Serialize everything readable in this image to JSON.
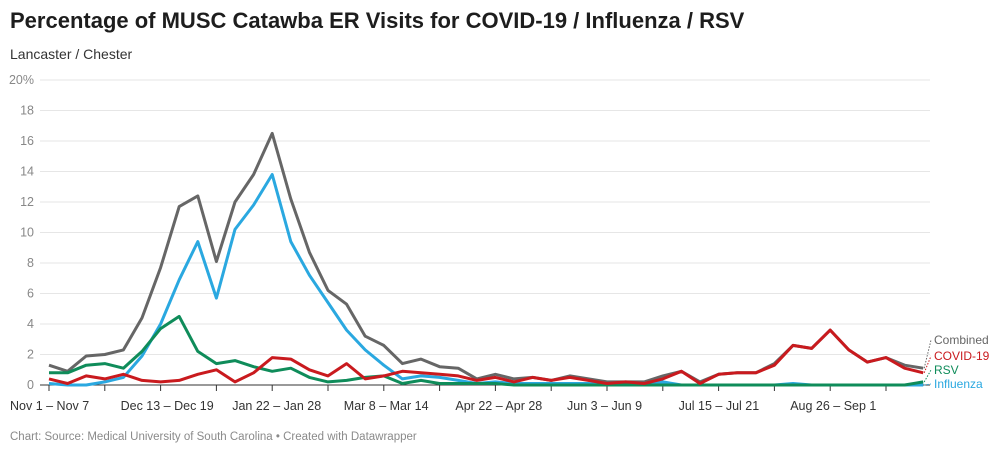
{
  "header": {
    "title": "Percentage of MUSC Catawba ER Visits for COVID-19 / Influenza / RSV",
    "subtitle": "Lancaster / Chester"
  },
  "footer": {
    "text": "Chart: Source: Medical University of South Carolina • Created with Datawrapper"
  },
  "chart_data": {
    "type": "line",
    "title": "Percentage of MUSC Catawba ER Visits for COVID-19 / Influenza / RSV",
    "subtitle": "Lancaster / Chester",
    "xlabel": "",
    "ylabel": "",
    "ylim": [
      0,
      20
    ],
    "yticks": [
      {
        "value": 0,
        "label": "0"
      },
      {
        "value": 2,
        "label": "2"
      },
      {
        "value": 4,
        "label": "4"
      },
      {
        "value": 6,
        "label": "6"
      },
      {
        "value": 8,
        "label": "8"
      },
      {
        "value": 10,
        "label": "10"
      },
      {
        "value": 12,
        "label": "12"
      },
      {
        "value": 14,
        "label": "14"
      },
      {
        "value": 16,
        "label": "16"
      },
      {
        "value": 18,
        "label": "18"
      },
      {
        "value": 20,
        "label": "20%"
      }
    ],
    "grid": true,
    "x_tick_every_weeks": 3,
    "xticks": [
      {
        "week": 0,
        "label": "Nov 1 – Nov 7"
      },
      {
        "week": 6,
        "label": "Dec 13 – Dec 19"
      },
      {
        "week": 12,
        "label": "Jan 22 – Jan 28"
      },
      {
        "week": 18,
        "label": "Mar 8 – Mar 14"
      },
      {
        "week": 24,
        "label": "Apr 22 – Apr 28"
      },
      {
        "week": 30,
        "label": "Jun 3 – Jun 9"
      },
      {
        "week": 36,
        "label": "Jul 15 – Jul 21"
      },
      {
        "week": 42,
        "label": "Aug 26 – Sep 1"
      }
    ],
    "legend_placement": "right-end-labels",
    "series": [
      {
        "name": "Combined",
        "color": "#666666",
        "values": [
          1.3,
          0.9,
          1.9,
          2.0,
          2.3,
          4.4,
          7.7,
          11.7,
          12.4,
          8.1,
          12.0,
          13.8,
          16.5,
          12.2,
          8.7,
          6.2,
          5.3,
          3.2,
          2.6,
          1.4,
          1.7,
          1.2,
          1.1,
          0.4,
          0.7,
          0.4,
          0.5,
          0.3,
          0.6,
          0.4,
          0.2,
          0.2,
          0.2,
          0.6,
          0.9,
          0.2,
          0.7,
          0.8,
          0.8,
          1.4,
          2.6,
          2.4,
          3.6,
          2.3,
          1.5,
          1.8,
          1.3,
          1.1
        ]
      },
      {
        "name": "COVID-19",
        "color": "#c91a1e",
        "values": [
          0.4,
          0.1,
          0.6,
          0.4,
          0.7,
          0.3,
          0.2,
          0.3,
          0.7,
          1.0,
          0.2,
          0.8,
          1.8,
          1.7,
          1.0,
          0.6,
          1.4,
          0.4,
          0.6,
          0.9,
          0.8,
          0.7,
          0.6,
          0.3,
          0.5,
          0.2,
          0.5,
          0.3,
          0.5,
          0.3,
          0.1,
          0.2,
          0.1,
          0.4,
          0.9,
          0.1,
          0.7,
          0.8,
          0.8,
          1.3,
          2.6,
          2.4,
          3.6,
          2.3,
          1.5,
          1.8,
          1.1,
          0.8
        ]
      },
      {
        "name": "RSV",
        "color": "#0f8c5a",
        "values": [
          0.8,
          0.8,
          1.3,
          1.4,
          1.1,
          2.2,
          3.7,
          4.5,
          2.2,
          1.4,
          1.6,
          1.2,
          0.9,
          1.1,
          0.5,
          0.2,
          0.3,
          0.5,
          0.6,
          0.1,
          0.3,
          0.1,
          0.1,
          0.1,
          0.1,
          0.0,
          0.0,
          0.0,
          0.0,
          0.0,
          0.0,
          0.0,
          0.0,
          0.0,
          0.0,
          0.0,
          0.0,
          0.0,
          0.0,
          0.0,
          0.0,
          0.0,
          0.0,
          0.0,
          0.0,
          0.0,
          0.0,
          0.2
        ]
      },
      {
        "name": "Influenza",
        "color": "#2aa8e0",
        "values": [
          0.1,
          0.0,
          0.0,
          0.2,
          0.5,
          1.9,
          4.0,
          6.9,
          9.4,
          5.7,
          10.2,
          11.8,
          13.8,
          9.4,
          7.2,
          5.4,
          3.6,
          2.3,
          1.3,
          0.4,
          0.6,
          0.5,
          0.3,
          0.1,
          0.2,
          0.1,
          0.1,
          0.1,
          0.1,
          0.1,
          0.0,
          0.0,
          0.0,
          0.2,
          0.0,
          0.0,
          0.0,
          0.0,
          0.0,
          0.0,
          0.1,
          0.0,
          0.0,
          0.0,
          0.0,
          0.0,
          0.0,
          0.0
        ]
      }
    ],
    "end_labels": [
      {
        "name": "Combined",
        "color": "#666666"
      },
      {
        "name": "COVID-19",
        "color": "#c91a1e"
      },
      {
        "name": "RSV",
        "color": "#0f8c5a"
      },
      {
        "name": "Influenza",
        "color": "#2aa8e0"
      }
    ]
  }
}
